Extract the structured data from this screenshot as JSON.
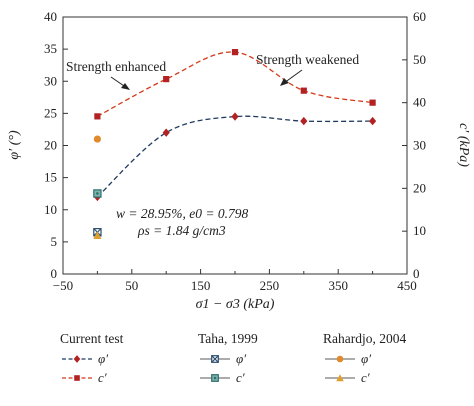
{
  "chart_data": {
    "type": "line",
    "xlabel": "σ1 − σ3 (kPa)",
    "ylabel_left": "φ′ (°)",
    "ylabel_right": "c′ (kPa)",
    "xlim": [
      -50,
      450
    ],
    "ylim_left": [
      0,
      40
    ],
    "ylim_right": [
      0,
      60
    ],
    "x_ticks": [
      "−50",
      "50",
      "150",
      "250",
      "350",
      "450"
    ],
    "x_tick_values": [
      -50,
      50,
      150,
      250,
      350,
      450
    ],
    "y_left_ticks": [
      "0",
      "5",
      "10",
      "15",
      "20",
      "25",
      "30",
      "35",
      "40"
    ],
    "y_left_tick_values": [
      0,
      5,
      10,
      15,
      20,
      25,
      30,
      35,
      40
    ],
    "y_right_ticks": [
      "0",
      "10",
      "20",
      "30",
      "40",
      "50",
      "60"
    ],
    "y_right_tick_values": [
      0,
      10,
      20,
      30,
      40,
      50,
      60
    ],
    "series": [
      {
        "group": "Current test",
        "name": "φ′",
        "axis": "left",
        "color": "#b22222",
        "line": "dashed-smooth",
        "line_color": "#1f3a5f",
        "marker": "diamond",
        "x": [
          0,
          100,
          200,
          300,
          400
        ],
        "y": [
          12,
          22,
          24.5,
          23.8,
          23.8
        ]
      },
      {
        "group": "Current test",
        "name": "c′",
        "axis": "right",
        "color": "#b22222",
        "line": "dashed-smooth",
        "line_color": "#d43a1a",
        "marker": "square",
        "x": [
          0,
          100,
          200,
          300,
          400
        ],
        "y": [
          36.8,
          45.5,
          51.8,
          42.8,
          40
        ]
      },
      {
        "group": "Taha, 1999",
        "name": "φ′",
        "axis": "left",
        "color": "#2b4c6f",
        "line": "none",
        "marker": "square-x",
        "x": [
          0
        ],
        "y": [
          6.5
        ]
      },
      {
        "group": "Taha, 1999",
        "name": "c′",
        "axis": "right",
        "color": "#2b6f6a",
        "line": "none",
        "marker": "square-dot",
        "x": [
          0
        ],
        "y": [
          18.8
        ]
      },
      {
        "group": "Rahardjo, 2004",
        "name": "φ′",
        "axis": "left",
        "color": "#e08a2a",
        "line": "none",
        "marker": "circle",
        "x": [
          0
        ],
        "y": [
          21
        ]
      },
      {
        "group": "Rahardjo, 2004",
        "name": "c′",
        "axis": "right",
        "color": "#e0a030",
        "line": "none",
        "marker": "triangle",
        "x": [
          0
        ],
        "y": [
          9
        ]
      }
    ],
    "annotations": {
      "enhanced": "Strength enhanced",
      "weakened": "Strength weakened",
      "props_line1": "w = 28.95%, e0 = 0.798",
      "props_line2": "ρs = 1.84 g/cm3"
    },
    "legend": {
      "groups": [
        "Current test",
        "Taha, 1999",
        "Rahardjo, 2004"
      ],
      "entries": [
        "φ′",
        "c′"
      ],
      "placement": "bottom"
    }
  }
}
